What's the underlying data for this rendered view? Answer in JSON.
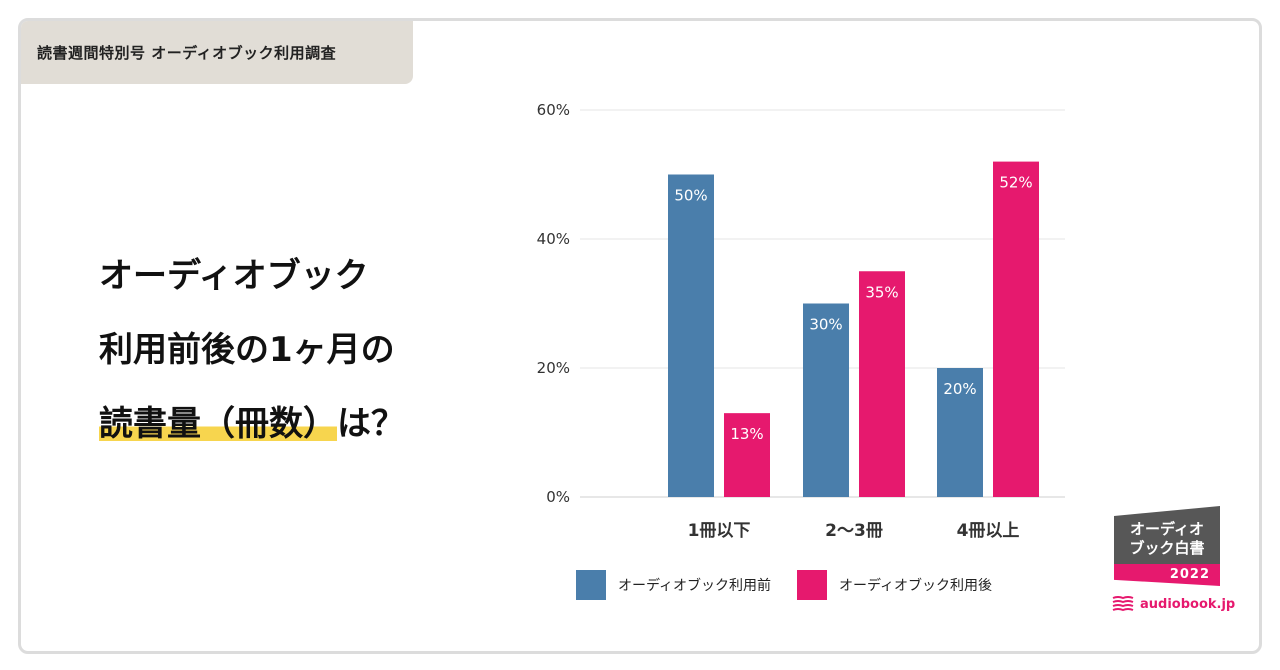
{
  "header": {
    "tag": "読書週間特別号 オーディオブック利用調査"
  },
  "headline": {
    "line1": "オーディオブック",
    "line2": "利用前後の1ヶ月の",
    "line3_highlight": "読書量（冊数）",
    "line3_rest": "は？"
  },
  "colors": {
    "before": "#4a7eab",
    "after": "#e6196e",
    "highlight": "#f7d54e",
    "tag_bg": "#e1ddd6"
  },
  "chart_data": {
    "type": "bar",
    "title": "",
    "categories": [
      "1冊以下",
      "2〜3冊",
      "4冊以上"
    ],
    "series": [
      {
        "name": "オーディオブック利用前",
        "values": [
          50,
          30,
          20
        ],
        "labels": [
          "50%",
          "30%",
          "20%"
        ]
      },
      {
        "name": "オーディオブック利用後",
        "values": [
          13,
          35,
          52
        ],
        "labels": [
          "13%",
          "35%",
          "52%"
        ]
      }
    ],
    "ylim": [
      0,
      60
    ],
    "yticks": [
      0,
      20,
      40,
      60
    ],
    "ytick_labels": [
      "0%",
      "20%",
      "40%",
      "60%"
    ],
    "grid": true,
    "legend": "bottom"
  },
  "legend": {
    "before_label": "オーディオブック利用前",
    "after_label": "オーディオブック利用後"
  },
  "badge": {
    "line1": "オーディオ",
    "line2": "ブック白書",
    "year": "2022"
  },
  "brand": {
    "name": "audiobook.jp"
  }
}
